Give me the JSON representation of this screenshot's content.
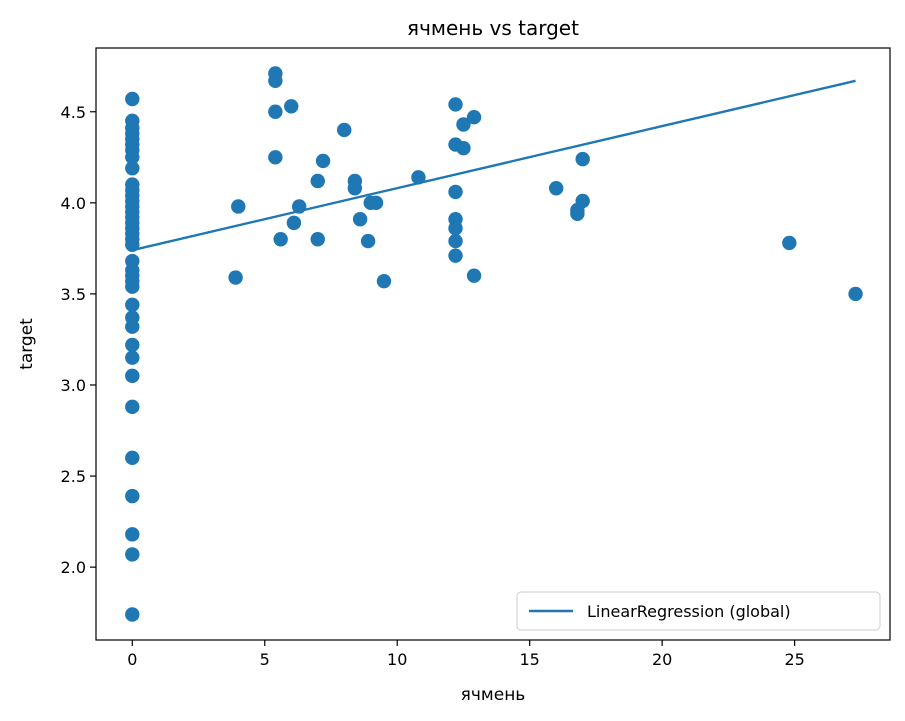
{
  "chart_data": {
    "type": "scatter",
    "title": "ячмень vs target",
    "xlabel": "ячмень",
    "ylabel": "target",
    "xlim": [
      -1.37,
      28.6
    ],
    "ylim": [
      1.6,
      4.85
    ],
    "xticks": [
      0,
      5,
      10,
      15,
      20,
      25
    ],
    "xtick_labels": [
      "0",
      "5",
      "10",
      "15",
      "20",
      "25"
    ],
    "yticks": [
      2.0,
      2.5,
      3.0,
      3.5,
      4.0,
      4.5
    ],
    "ytick_labels": [
      "2.0",
      "2.5",
      "3.0",
      "3.5",
      "4.0",
      "4.5"
    ],
    "grid": false,
    "legend_position": "lower-right",
    "point_color": "#1f77b4",
    "line_color": "#1f77b4",
    "points": [
      [
        0,
        4.57
      ],
      [
        0,
        4.45
      ],
      [
        0,
        4.41
      ],
      [
        0,
        4.38
      ],
      [
        0,
        4.35
      ],
      [
        0,
        4.32
      ],
      [
        0,
        4.29
      ],
      [
        0,
        4.25
      ],
      [
        0,
        4.19
      ],
      [
        0,
        4.1
      ],
      [
        0,
        4.07
      ],
      [
        0,
        4.04
      ],
      [
        0,
        4.01
      ],
      [
        0,
        3.98
      ],
      [
        0,
        3.95
      ],
      [
        0,
        3.92
      ],
      [
        0,
        3.89
      ],
      [
        0,
        3.86
      ],
      [
        0,
        3.83
      ],
      [
        0,
        3.8
      ],
      [
        0,
        3.77
      ],
      [
        0,
        3.68
      ],
      [
        0,
        3.63
      ],
      [
        0,
        3.6
      ],
      [
        0,
        3.57
      ],
      [
        0,
        3.54
      ],
      [
        0,
        3.44
      ],
      [
        0,
        3.37
      ],
      [
        0,
        3.32
      ],
      [
        0,
        3.22
      ],
      [
        0,
        3.15
      ],
      [
        0,
        3.05
      ],
      [
        0,
        2.88
      ],
      [
        0,
        2.6
      ],
      [
        0,
        2.39
      ],
      [
        0,
        2.18
      ],
      [
        0,
        2.07
      ],
      [
        0,
        1.74
      ],
      [
        3.9,
        3.59
      ],
      [
        4.0,
        3.98
      ],
      [
        5.4,
        4.71
      ],
      [
        5.4,
        4.67
      ],
      [
        5.4,
        4.5
      ],
      [
        5.4,
        4.25
      ],
      [
        5.6,
        3.8
      ],
      [
        6.0,
        4.53
      ],
      [
        6.1,
        3.89
      ],
      [
        6.3,
        3.98
      ],
      [
        7.0,
        4.12
      ],
      [
        7.0,
        3.8
      ],
      [
        7.2,
        4.23
      ],
      [
        8.0,
        4.4
      ],
      [
        8.4,
        4.12
      ],
      [
        8.4,
        4.08
      ],
      [
        8.6,
        3.91
      ],
      [
        8.9,
        3.79
      ],
      [
        9.0,
        4.0
      ],
      [
        9.2,
        4.0
      ],
      [
        9.5,
        3.57
      ],
      [
        10.8,
        4.14
      ],
      [
        12.2,
        4.54
      ],
      [
        12.2,
        4.32
      ],
      [
        12.2,
        4.06
      ],
      [
        12.2,
        3.91
      ],
      [
        12.2,
        3.86
      ],
      [
        12.2,
        3.79
      ],
      [
        12.2,
        3.71
      ],
      [
        12.5,
        4.43
      ],
      [
        12.5,
        4.3
      ],
      [
        12.9,
        4.47
      ],
      [
        12.9,
        3.6
      ],
      [
        16.0,
        4.08
      ],
      [
        16.8,
        3.96
      ],
      [
        16.8,
        3.94
      ],
      [
        17.0,
        4.24
      ],
      [
        17.0,
        4.01
      ],
      [
        24.8,
        3.78
      ],
      [
        27.3,
        3.5
      ]
    ],
    "series": [
      {
        "name": "LinearRegression (global)",
        "type": "line",
        "x": [
          0,
          27.3
        ],
        "y": [
          3.74,
          4.67
        ]
      }
    ]
  }
}
